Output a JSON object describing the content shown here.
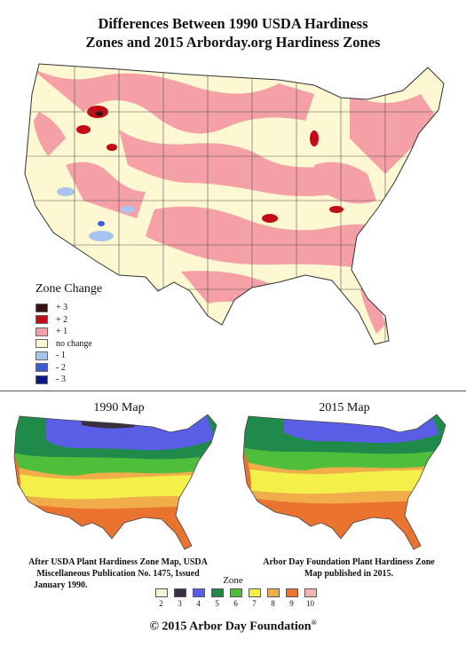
{
  "title": {
    "line1": "Differences Between 1990 USDA Hardiness",
    "line2": "Zones and 2015 Arborday.org Hardiness Zones"
  },
  "change_legend": {
    "title": "Zone Change",
    "items": [
      {
        "label": "+ 3",
        "color": "#3a0f12"
      },
      {
        "label": "+ 2",
        "color": "#c40a14"
      },
      {
        "label": "+ 1",
        "color": "#f4a0a6"
      },
      {
        "label": "no change",
        "color": "#fdf8d2"
      },
      {
        "label": "- 1",
        "color": "#a7c4ef"
      },
      {
        "label": "- 2",
        "color": "#3d5bd9"
      },
      {
        "label": "- 3",
        "color": "#0b1a86"
      }
    ]
  },
  "map_1990": {
    "title": "1990 Map",
    "caption_lines": [
      "After USDA Plant Hardiness Zone Map, USDA",
      "Miscellaneous Publication No. 1475, Issued",
      "January 1990."
    ]
  },
  "map_2015": {
    "title": "2015 Map",
    "caption_lines": [
      "Arbor Day Foundation Plant Hardiness Zone",
      "Map published in 2015."
    ]
  },
  "zone_legend": {
    "title": "Zone",
    "zones": [
      {
        "label": "2",
        "color": "#eef6d8"
      },
      {
        "label": "3",
        "color": "#3b2e3f"
      },
      {
        "label": "4",
        "color": "#5a5ee6"
      },
      {
        "label": "5",
        "color": "#1f8a4a"
      },
      {
        "label": "6",
        "color": "#4fbe3a"
      },
      {
        "label": "7",
        "color": "#f4f04a"
      },
      {
        "label": "8",
        "color": "#f2ad4b"
      },
      {
        "label": "9",
        "color": "#e9732f"
      },
      {
        "label": "10",
        "color": "#f3b3b3"
      }
    ]
  },
  "copyright": {
    "text": "© 2015 Arbor Day Foundation",
    "mark": "®"
  }
}
